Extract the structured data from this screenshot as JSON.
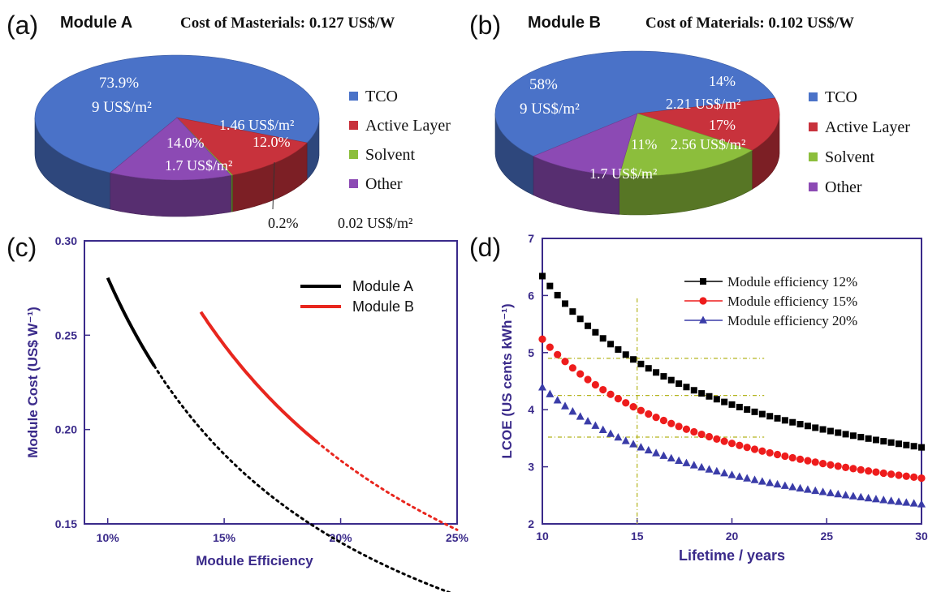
{
  "panels": {
    "a": {
      "label": "(a)",
      "title": "Module A",
      "cost": "Cost of Masterials: 0.127 US$/W"
    },
    "b": {
      "label": "(b)",
      "title": "Module B",
      "cost": "Cost of Materials: 0.102 US$/W"
    },
    "c": {
      "label": "(c)"
    },
    "d": {
      "label": "(d)"
    }
  },
  "colors": {
    "tco": "#4a72c8",
    "active": "#c8323c",
    "solvent": "#8cbe3c",
    "other": "#8c4ab4",
    "axis": "#3a2a8a",
    "module_a_line": "#000000",
    "module_b_line": "#e8261e",
    "eff12": "#000000",
    "eff15": "#ee1c1c",
    "eff20": "#3a3ca8",
    "guide": "#b4b41e"
  },
  "chart_data": [
    {
      "type": "pie",
      "panel": "a",
      "title": "Module A",
      "slices": [
        {
          "name": "TCO",
          "percent": 73.9,
          "percent_label": "73.9%",
          "cost_label": "9 US$/m²"
        },
        {
          "name": "Active Layer",
          "percent": 12.0,
          "percent_label": "12.0%",
          "cost_label": "1.46 US$/m²"
        },
        {
          "name": "Solvent",
          "percent": 0.2,
          "percent_label": "0.2%",
          "cost_label": "0.02 US$/m²"
        },
        {
          "name": "Other",
          "percent": 14.0,
          "percent_label": "14.0%",
          "cost_label": "1.7 US$/m²"
        }
      ],
      "legend": [
        "TCO",
        "Active Layer",
        "Solvent",
        "Other"
      ],
      "legend_position": "right"
    },
    {
      "type": "pie",
      "panel": "b",
      "title": "Module B",
      "slices": [
        {
          "name": "TCO",
          "percent": 58,
          "percent_label": "58%",
          "cost_label": "9 US$/m²"
        },
        {
          "name": "Active Layer",
          "percent": 14,
          "percent_label": "14%",
          "cost_label": "2.21 US$/m²"
        },
        {
          "name": "Solvent",
          "percent": 17,
          "percent_label": "17%",
          "cost_label": "2.56 US$/m²"
        },
        {
          "name": "Other",
          "percent": 11,
          "percent_label": "11%",
          "cost_label": "1.7 US$/m²"
        }
      ],
      "legend": [
        "TCO",
        "Active Layer",
        "Solvent",
        "Other"
      ],
      "legend_position": "right"
    },
    {
      "type": "line",
      "panel": "c",
      "xlabel": "Module Efficiency",
      "ylabel": "Module Cost (US$ W⁻¹)",
      "xlim": [
        0.09,
        0.25
      ],
      "ylim": [
        0.15,
        0.3
      ],
      "xticks": [
        0.1,
        0.15,
        0.2,
        0.25
      ],
      "xtick_labels": [
        "10%",
        "15%",
        "20%",
        "25%"
      ],
      "yticks": [
        0.15,
        0.2,
        0.25,
        0.3
      ],
      "ytick_labels": [
        "0.15",
        "0.20",
        "0.25",
        "0.30"
      ],
      "legend_position": "top-right",
      "series": [
        {
          "name": "Module A",
          "a": 0.02804,
          "solid_range": [
            0.1,
            0.12
          ],
          "dotted_range": [
            0.12,
            0.25
          ]
        },
        {
          "name": "Module B",
          "a": 0.03672,
          "solid_range": [
            0.14,
            0.19
          ],
          "dotted_range": [
            0.19,
            0.25
          ]
        }
      ]
    },
    {
      "type": "scatter",
      "panel": "d",
      "xlabel": "Lifetime / years",
      "ylabel": "LCOE (US cents kWh⁻¹)",
      "xlim": [
        10,
        30
      ],
      "ylim": [
        2,
        7
      ],
      "xticks": [
        10,
        15,
        20,
        25,
        30
      ],
      "yticks": [
        2,
        3,
        4,
        5,
        6,
        7
      ],
      "legend_position": "top-right",
      "x_step": 0.4,
      "series": [
        {
          "name": "Module efficiency 12%",
          "marker": "square",
          "a": 1.84,
          "b": 45.0
        },
        {
          "name": "Module efficiency 15%",
          "marker": "circle",
          "a": 1.585,
          "b": 36.5
        },
        {
          "name": "Module efficiency 20%",
          "marker": "triangle",
          "a": 1.32,
          "b": 30.7
        }
      ],
      "guide_lines": {
        "vertical_x": 15,
        "horizontal_y": [
          4.9,
          4.25,
          3.52
        ],
        "horizontal_x_end": 21.7
      }
    }
  ]
}
